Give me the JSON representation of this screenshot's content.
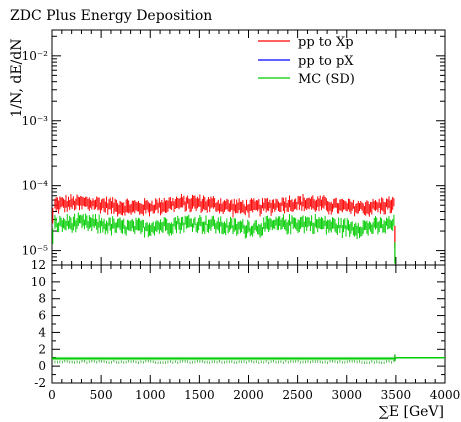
{
  "chart_data": [
    {
      "type": "scatter",
      "title": "ZDC Plus Energy Deposition",
      "ylabel": "1/N, dE/dN",
      "xlabel": "",
      "yscale": "log",
      "xlim": [
        0,
        4000
      ],
      "ylim": [
        6e-06,
        0.025
      ],
      "y_ticks": [
        {
          "value": 1e-05,
          "label": "10⁻⁵"
        },
        {
          "value": 0.0001,
          "label": "10⁻⁴"
        },
        {
          "value": 0.001,
          "label": "10⁻³"
        },
        {
          "value": 0.01,
          "label": "10⁻²"
        }
      ],
      "legend_position": "top-right",
      "x_range_of_bins": [
        0,
        3500
      ],
      "series": [
        {
          "name": "pp to Xp",
          "color": "#ff0000",
          "typical_y": 5e-05,
          "spread": "0.00004-0.00006",
          "edge_bin": [
            3490,
            1.6e-05
          ]
        },
        {
          "name": "pp to pX",
          "color": "#0000ff",
          "typical_y": null
        },
        {
          "name": "MC (SD)",
          "color": "#00cc00",
          "typical_y": 2.4e-05,
          "spread": "0.000018-0.000030",
          "edge_bin": [
            3490,
            9e-06
          ]
        }
      ]
    },
    {
      "type": "line",
      "title": "",
      "xlabel": "∑E [GeV]",
      "ylabel": "",
      "xlim": [
        0,
        4000
      ],
      "ylim": [
        -2,
        12
      ],
      "x_ticks": [
        0,
        500,
        1000,
        1500,
        2000,
        2500,
        3000,
        3500,
        4000
      ],
      "y_ticks": [
        -2,
        0,
        2,
        4,
        6,
        8,
        10,
        12
      ],
      "band": {
        "center": 0.9,
        "low": 0.7,
        "high": 1.1,
        "color": "#00cc00",
        "x_range": [
          0,
          3500
        ]
      },
      "reference_line": {
        "y": 1,
        "color": "#00cc00",
        "x_range": [
          3500,
          4000
        ]
      },
      "ratio_points": {
        "x_range": [
          0,
          3500
        ],
        "y_approx": 0.5
      }
    }
  ]
}
